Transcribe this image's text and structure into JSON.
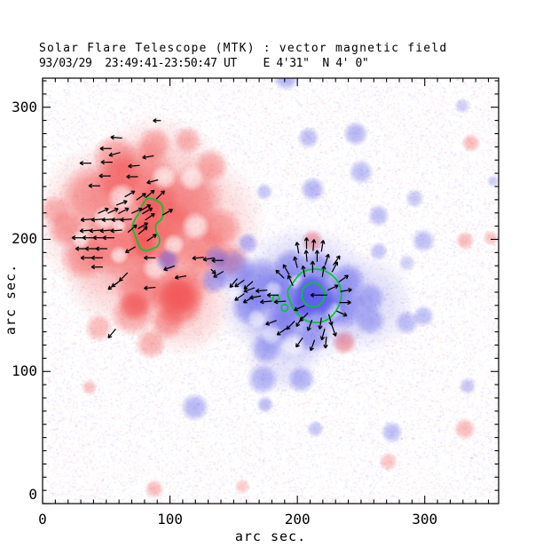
{
  "header": {
    "title_line1": "Solar Flare Telescope (MTK) : vector magnetic field",
    "title_line2": "93/03/29  23:49:41-23:50:47 UT    E 4'31\"  N 4' 0\""
  },
  "chart_data": {
    "type": "heatmap",
    "title": "Solar Flare Telescope (MTK) : vector magnetic field",
    "subtitle": "93/03/29  23:49:41-23:50:47 UT    E 4'31\"  N 4' 0\"",
    "xlabel": "arc sec.",
    "ylabel": "arc sec.",
    "xlim": [
      0,
      358
    ],
    "ylim": [
      0,
      322
    ],
    "xticks": [
      0,
      100,
      200,
      300
    ],
    "yticks": [
      0,
      100,
      200,
      300
    ],
    "minor_tick_step": 10,
    "grid": false,
    "colors": {
      "positive_polarity": "#f25555",
      "negative_polarity": "#5c5ce8",
      "contour": "#00c832",
      "arrow": "#000000",
      "axis": "#000000",
      "noise_red": "#ff9f9f",
      "noise_blue": "#a9a9ff",
      "background": "#ffffff"
    },
    "noise": {
      "seed": 7,
      "count": 30000,
      "blue_fraction": 0.55
    },
    "blobs": [
      [
        55,
        215,
        50,
        0.3,
        "r"
      ],
      [
        90,
        240,
        45,
        0.28,
        "r"
      ],
      [
        95,
        185,
        42,
        0.25,
        "r"
      ],
      [
        60,
        175,
        36,
        0.22,
        "r"
      ],
      [
        110,
        150,
        32,
        0.25,
        "r"
      ],
      [
        125,
        215,
        40,
        0.22,
        "r"
      ],
      [
        39.4,
        232,
        21,
        0.5,
        "r"
      ],
      [
        77.3,
        246,
        24,
        0.5,
        "r"
      ],
      [
        115.3,
        229,
        21,
        0.5,
        "r"
      ],
      [
        56.6,
        198,
        22,
        0.5,
        "r"
      ],
      [
        91.2,
        191,
        19,
        0.5,
        "r"
      ],
      [
        125.7,
        191,
        17,
        0.5,
        "r"
      ],
      [
        32.5,
        187,
        15,
        0.5,
        "r"
      ],
      [
        77.3,
        163,
        17,
        0.5,
        "r"
      ],
      [
        111.9,
        163,
        15,
        0.5,
        "r"
      ],
      [
        139.5,
        208,
        14,
        0.5,
        "r"
      ],
      [
        147.8,
        184,
        11,
        0.5,
        "r"
      ],
      [
        132.6,
        256,
        11,
        0.45,
        "r"
      ],
      [
        56.6,
        263,
        14,
        0.45,
        "r"
      ],
      [
        87.7,
        272,
        11,
        0.45,
        "r"
      ],
      [
        113.9,
        275,
        9,
        0.4,
        "r"
      ],
      [
        18.6,
        208,
        12,
        0.5,
        "r"
      ],
      [
        9.7,
        222,
        10,
        0.4,
        "r"
      ],
      [
        70.4,
        143,
        14,
        0.5,
        "r"
      ],
      [
        98.1,
        137,
        11,
        0.5,
        "r"
      ],
      [
        84.9,
        121,
        10,
        0.45,
        "r"
      ],
      [
        108.4,
        150,
        15,
        0.5,
        "r"
      ],
      [
        105,
        156,
        17,
        0.55,
        "r"
      ],
      [
        44,
        133,
        9,
        0.4,
        "r"
      ],
      [
        36.6,
        88,
        5,
        0.35,
        "r"
      ],
      [
        60,
        246,
        16,
        0.5,
        "r"
      ],
      [
        100,
        212,
        15,
        0.5,
        "r"
      ],
      [
        90,
        230,
        14,
        0.5,
        "r"
      ],
      [
        62,
        232,
        9,
        0.7,
        "w"
      ],
      [
        49,
        216,
        8,
        0.7,
        "w"
      ],
      [
        95,
        247,
        8,
        0.7,
        "w"
      ],
      [
        60,
        188,
        6,
        0.7,
        "w"
      ],
      [
        88,
        178,
        8,
        0.7,
        "w"
      ],
      [
        120,
        210,
        9,
        0.7,
        "w"
      ],
      [
        103,
        196,
        7,
        0.7,
        "w"
      ],
      [
        117,
        246,
        8,
        0.7,
        "w"
      ],
      [
        30,
        200,
        6,
        0.7,
        "w"
      ],
      [
        60,
        210,
        5,
        0.7,
        "w"
      ],
      [
        82,
        215,
        10,
        0.72,
        "r"
      ],
      [
        85,
        225,
        8,
        0.72,
        "r"
      ],
      [
        78,
        205,
        9,
        0.72,
        "r"
      ],
      [
        105,
        157,
        12,
        0.68,
        "r"
      ],
      [
        72,
        150,
        10,
        0.65,
        "r"
      ],
      [
        80,
        195,
        8,
        0.7,
        "r"
      ],
      [
        212,
        199,
        7,
        0.5,
        "r"
      ],
      [
        236.9,
        122,
        8,
        0.55,
        "r"
      ],
      [
        336.3,
        273,
        6,
        0.4,
        "r"
      ],
      [
        331.5,
        199,
        6,
        0.4,
        "r"
      ],
      [
        352,
        201,
        5,
        0.35,
        "r"
      ],
      [
        331.5,
        56.5,
        7,
        0.4,
        "r"
      ],
      [
        271.4,
        31.7,
        6,
        0.35,
        "r"
      ],
      [
        87.7,
        11,
        6,
        0.4,
        "r"
      ],
      [
        156.8,
        13,
        5,
        0.3,
        "r"
      ],
      [
        205,
        158,
        44,
        0.3,
        "b"
      ],
      [
        252,
        152,
        32,
        0.2,
        "b"
      ],
      [
        176,
        150,
        30,
        0.22,
        "b"
      ],
      [
        188,
        112,
        24,
        0.18,
        "b"
      ],
      [
        149.9,
        177,
        14,
        0.5,
        "b"
      ],
      [
        170.6,
        167,
        17,
        0.5,
        "b"
      ],
      [
        194.7,
        156,
        19,
        0.55,
        "b"
      ],
      [
        215.5,
        153,
        19,
        0.55,
        "b"
      ],
      [
        236.2,
        149,
        14,
        0.5,
        "b"
      ],
      [
        194.7,
        180,
        11,
        0.5,
        "b"
      ],
      [
        215.5,
        177,
        12,
        0.5,
        "b"
      ],
      [
        239.6,
        169,
        11,
        0.5,
        "b"
      ],
      [
        256.9,
        156,
        10,
        0.45,
        "b"
      ],
      [
        134.7,
        169,
        9,
        0.5,
        "b"
      ],
      [
        162.3,
        149,
        12,
        0.5,
        "b"
      ],
      [
        187.8,
        134,
        12,
        0.5,
        "b"
      ],
      [
        212,
        127,
        11,
        0.5,
        "b"
      ],
      [
        175.4,
        117,
        10,
        0.45,
        "b"
      ],
      [
        160.9,
        197,
        7,
        0.45,
        "b"
      ],
      [
        256.9,
        139,
        10,
        0.45,
        "b"
      ],
      [
        285.9,
        137,
        8,
        0.4,
        "b"
      ],
      [
        299,
        142,
        7,
        0.4,
        "b"
      ],
      [
        172.6,
        94,
        10,
        0.45,
        "b"
      ],
      [
        119.5,
        73,
        9,
        0.45,
        "b"
      ],
      [
        174.7,
        75,
        5.5,
        0.4,
        "b"
      ],
      [
        214.1,
        56.5,
        5.5,
        0.35,
        "b"
      ],
      [
        274.2,
        54,
        7,
        0.4,
        "b"
      ],
      [
        98.1,
        184,
        7.6,
        0.55,
        "b"
      ],
      [
        136,
        186,
        8,
        0.45,
        "b"
      ],
      [
        203,
        94,
        9,
        0.45,
        "b"
      ],
      [
        181,
        162,
        6,
        0.6,
        "w"
      ],
      [
        199,
        168,
        5,
        0.6,
        "w"
      ],
      [
        228,
        146,
        6,
        0.6,
        "w"
      ],
      [
        180,
        128,
        7,
        0.6,
        "w"
      ],
      [
        152,
        160,
        5,
        0.6,
        "w"
      ],
      [
        196,
        120,
        8,
        0.6,
        "w"
      ],
      [
        168,
        140,
        6,
        0.6,
        "w"
      ],
      [
        213,
        157,
        13,
        0.78,
        "b"
      ],
      [
        206,
        151,
        9,
        0.75,
        "b"
      ],
      [
        220,
        152,
        8,
        0.72,
        "b"
      ],
      [
        210,
        163,
        9,
        0.72,
        "b"
      ],
      [
        191.3,
        322,
        8,
        0.45,
        "b"
      ],
      [
        208.6,
        277,
        7,
        0.4,
        "b"
      ],
      [
        212,
        238,
        8,
        0.45,
        "b"
      ],
      [
        245.8,
        280,
        8,
        0.45,
        "b"
      ],
      [
        250,
        251,
        8,
        0.4,
        "b"
      ],
      [
        174,
        236,
        5.5,
        0.35,
        "b"
      ],
      [
        263.8,
        218,
        7,
        0.4,
        "b"
      ],
      [
        292.1,
        231,
        6,
        0.35,
        "b"
      ],
      [
        299,
        199,
        7.6,
        0.4,
        "b"
      ],
      [
        263.8,
        191,
        6,
        0.35,
        "b"
      ],
      [
        329.4,
        301,
        5,
        0.3,
        "b"
      ],
      [
        353.6,
        244,
        4,
        0.3,
        "b"
      ],
      [
        333.6,
        89,
        5.5,
        0.35,
        "b"
      ],
      [
        285.9,
        182,
        5.5,
        0.3,
        "b"
      ]
    ],
    "contours": {
      "left_polygon": [
        [
          82.2,
          230.8
        ],
        [
          87.7,
          230.1
        ],
        [
          93.2,
          226.7
        ],
        [
          94.6,
          220.5
        ],
        [
          93.2,
          215.0
        ],
        [
          89.1,
          211.5
        ],
        [
          89.1,
          206.0
        ],
        [
          91.8,
          200.5
        ],
        [
          90.5,
          195.0
        ],
        [
          86.3,
          192.9
        ],
        [
          81.5,
          191.5
        ],
        [
          77.3,
          192.9
        ],
        [
          74.6,
          197.7
        ],
        [
          72.5,
          203.3
        ],
        [
          70.4,
          209.5
        ],
        [
          72.5,
          215.0
        ],
        [
          76.0,
          220.5
        ],
        [
          78.7,
          226.7
        ]
      ],
      "right_outer": [
        [
          234.5,
          157
        ],
        [
          232,
          167.5
        ],
        [
          224,
          175
        ],
        [
          213.5,
          177.5
        ],
        [
          203,
          174.5
        ],
        [
          195,
          165
        ],
        [
          192.5,
          161
        ],
        [
          193,
          156
        ],
        [
          195.5,
          150.5
        ],
        [
          197,
          147.5
        ],
        [
          204,
          140
        ],
        [
          214,
          137
        ],
        [
          224,
          139.5
        ],
        [
          231,
          147
        ]
      ],
      "right_inner_circle": {
        "cx": 212.5,
        "cy": 158,
        "r": 9
      },
      "small_circles": [
        {
          "cx": 183.2,
          "cy": 155.0,
          "r": 2.6
        },
        {
          "cx": 190.0,
          "cy": 148.2,
          "r": 2.6
        }
      ]
    },
    "arrows": [
      [
        58,
        277,
        175
      ],
      [
        49.7,
        268.7,
        180
      ],
      [
        56.6,
        264.6,
        195
      ],
      [
        33.8,
        257.7,
        180
      ],
      [
        50.4,
        258.4,
        180
      ],
      [
        71.8,
        255.6,
        185
      ],
      [
        82.9,
        262.5,
        190
      ],
      [
        49,
        248,
        180
      ],
      [
        70.4,
        247.4,
        180
      ],
      [
        86.3,
        243.9,
        195
      ],
      [
        40.7,
        240.5,
        180
      ],
      [
        89.8,
        289.9,
        180,
        6
      ],
      [
        47.6,
        221.5,
        25
      ],
      [
        55.2,
        221.5,
        25
      ],
      [
        63.5,
        221.5,
        28
      ],
      [
        73.9,
        221.5,
        25
      ],
      [
        82.2,
        221.5,
        30
      ],
      [
        98.1,
        220.5,
        30
      ],
      [
        68.4,
        234.3,
        30
      ],
      [
        77.3,
        232.2,
        35
      ],
      [
        84.2,
        234.3,
        40
      ],
      [
        92.5,
        233.6,
        45
      ],
      [
        62.1,
        227.4,
        20
      ],
      [
        70.4,
        208.1,
        40
      ],
      [
        78.7,
        206.7,
        40
      ],
      [
        85.6,
        201.2,
        35
      ],
      [
        78.7,
        210.2,
        30
      ],
      [
        84.2,
        217,
        35
      ],
      [
        80.8,
        223.9,
        30
      ],
      [
        34.5,
        215,
        185
      ],
      [
        42.8,
        215,
        185
      ],
      [
        51.1,
        215,
        185
      ],
      [
        58.7,
        215,
        185
      ],
      [
        65.6,
        215,
        185
      ],
      [
        33.8,
        206.7,
        185
      ],
      [
        41.4,
        206.7,
        185
      ],
      [
        49.7,
        206.7,
        185
      ],
      [
        58,
        206.7,
        185
      ],
      [
        27.6,
        201.2,
        180
      ],
      [
        35.9,
        201.2,
        180
      ],
      [
        44.2,
        201.2,
        180
      ],
      [
        51.8,
        201.2,
        180
      ],
      [
        30.4,
        192.9,
        180
      ],
      [
        38,
        192.9,
        180
      ],
      [
        46.3,
        192.9,
        180
      ],
      [
        34.5,
        186,
        180
      ],
      [
        42.8,
        186,
        180
      ],
      [
        42.8,
        179.1,
        180
      ],
      [
        63.5,
        171.6,
        225
      ],
      [
        55.2,
        164.7,
        215
      ],
      [
        84.2,
        186,
        180
      ],
      [
        69,
        192.2,
        210
      ],
      [
        122.2,
        186,
        185
      ],
      [
        130.5,
        185.3,
        190
      ],
      [
        137.4,
        184,
        180
      ],
      [
        108.4,
        171.6,
        190
      ],
      [
        99.4,
        178.4,
        200
      ],
      [
        84.2,
        163.3,
        185
      ],
      [
        58,
        166.7,
        215
      ],
      [
        54.5,
        128.8,
        230
      ],
      [
        150,
        167,
        230
      ],
      [
        207.2,
        187.4,
        95
      ],
      [
        215.5,
        187.4,
        90
      ],
      [
        223.1,
        184.6,
        72
      ],
      [
        198.9,
        182.6,
        105
      ],
      [
        229.3,
        179.1,
        62
      ],
      [
        191.3,
        177.1,
        120
      ],
      [
        207.2,
        197,
        90
      ],
      [
        212.7,
        195.6,
        85
      ],
      [
        200.3,
        193.6,
        100
      ],
      [
        219.6,
        195,
        80
      ],
      [
        212,
        179.1,
        90
      ],
      [
        205.1,
        175.7,
        100
      ],
      [
        220.3,
        175.7,
        80
      ],
      [
        186.4,
        173.6,
        135
      ],
      [
        194.7,
        168.8,
        115
      ],
      [
        230.7,
        184,
        55
      ],
      [
        227.9,
        163.3,
        25
      ],
      [
        236.2,
        170.2,
        35
      ],
      [
        238.2,
        161.2,
        10
      ],
      [
        237.5,
        152.2,
        0
      ],
      [
        234.8,
        144,
        -25
      ],
      [
        162.3,
        161.9,
        200
      ],
      [
        171.9,
        161.2,
        185
      ],
      [
        167.1,
        156.4,
        190
      ],
      [
        175.4,
        152.9,
        185
      ],
      [
        180.9,
        157.8,
        180
      ],
      [
        186.4,
        152.9,
        185
      ],
      [
        154.7,
        166.7,
        215
      ],
      [
        138.1,
        173.6,
        210
      ],
      [
        161.6,
        165.3,
        220
      ],
      [
        154.7,
        156.4,
        215
      ],
      [
        161.6,
        154.3,
        210
      ],
      [
        216.9,
        157.8,
        180,
        13
      ],
      [
        201.6,
        148.1,
        205
      ],
      [
        205.1,
        141.2,
        225
      ],
      [
        201.6,
        137.8,
        240
      ],
      [
        209.9,
        135,
        250
      ],
      [
        218.2,
        136.4,
        262
      ],
      [
        225.8,
        139.2,
        285
      ],
      [
        220.3,
        128.1,
        255
      ],
      [
        228.6,
        130.9,
        290
      ],
      [
        194.7,
        135,
        225
      ],
      [
        201.6,
        122,
        235
      ],
      [
        212,
        119.9,
        250
      ],
      [
        222.4,
        122,
        265
      ],
      [
        187.8,
        130.2,
        215
      ],
      [
        179.5,
        137.1,
        200
      ],
      [
        134,
        175.7,
        315,
        5
      ]
    ]
  }
}
